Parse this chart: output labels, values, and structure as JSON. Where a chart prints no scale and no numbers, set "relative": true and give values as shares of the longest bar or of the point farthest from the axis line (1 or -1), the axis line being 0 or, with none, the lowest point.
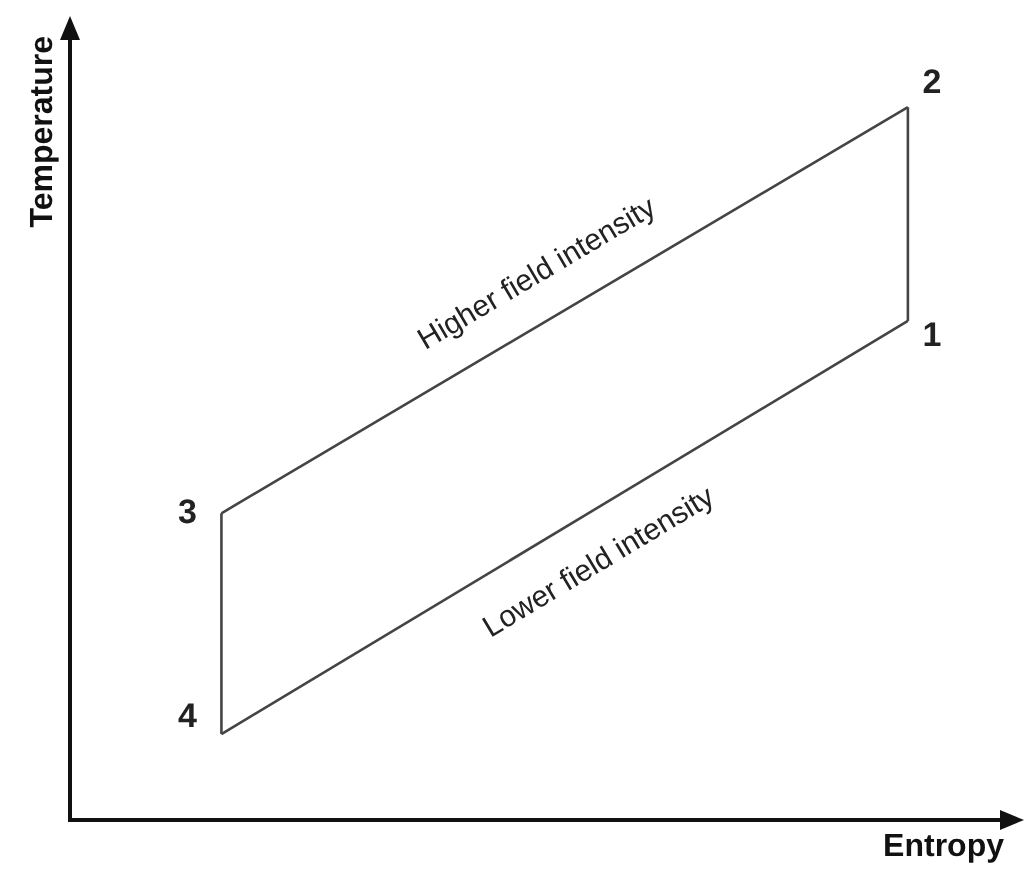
{
  "chart_data": {
    "type": "line",
    "relative": true,
    "xlabel": "Entropy",
    "ylabel": "Temperature",
    "marker": "none",
    "line_style": "solid",
    "grid": false,
    "legend": false,
    "categories": [
      null,
      null
    ],
    "series": [
      {
        "name": "Higher field intensity",
        "color": "#444444",
        "values": [
          0.43,
          1
        ]
      },
      {
        "name": "Lower field intensity",
        "color": "#444444",
        "values": [
          0.12,
          0.7
        ]
      }
    ],
    "annotations": [
      "3",
      "2",
      "4",
      "1"
    ]
  }
}
